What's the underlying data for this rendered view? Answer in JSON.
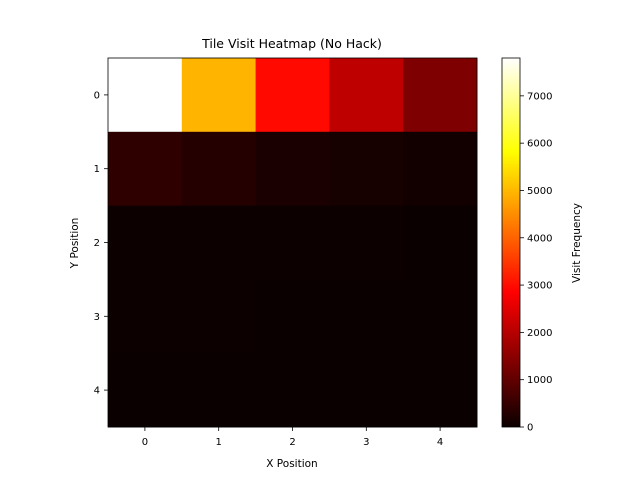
{
  "chart_data": {
    "type": "heatmap",
    "title": "Tile Visit Heatmap (No Hack)",
    "xlabel": "X Position",
    "ylabel": "Y Position",
    "x_categories": [
      "0",
      "1",
      "2",
      "3",
      "4"
    ],
    "y_categories": [
      "0",
      "1",
      "2",
      "3",
      "4"
    ],
    "values": [
      [
        7800,
        4950,
        2950,
        2100,
        1350
      ],
      [
        420,
        300,
        180,
        150,
        90
      ],
      [
        30,
        25,
        20,
        15,
        10
      ],
      [
        15,
        12,
        10,
        8,
        6
      ],
      [
        10,
        8,
        6,
        5,
        4
      ]
    ],
    "colormap": "hot",
    "vmin": 0,
    "vmax": 7800,
    "colorbar": {
      "label": "Visit Frequency",
      "ticks": [
        0,
        1000,
        2000,
        3000,
        4000,
        5000,
        6000,
        7000
      ],
      "tick_labels": [
        "0",
        "1000",
        "2000",
        "3000",
        "4000",
        "5000",
        "6000",
        "7000"
      ]
    }
  }
}
